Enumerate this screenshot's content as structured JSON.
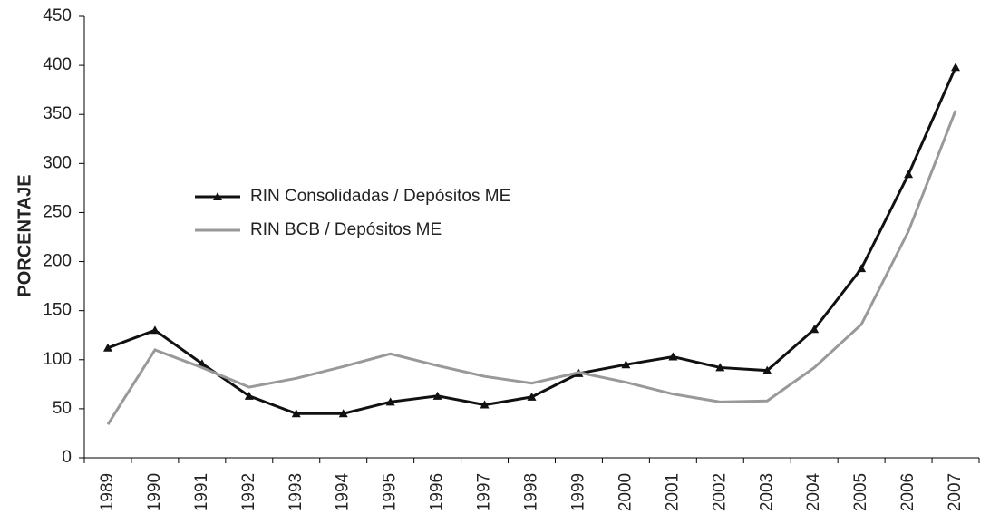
{
  "chart_data": {
    "type": "line",
    "y_label": "PORCENTAJE",
    "categories": [
      "1989",
      "1990",
      "1991",
      "1992",
      "1993",
      "1994",
      "1995",
      "1996",
      "1997",
      "1998",
      "1999",
      "2000",
      "2001",
      "2002",
      "2003",
      "2004",
      "2005",
      "2006",
      "2007"
    ],
    "series": [
      {
        "name": "RIN Consolidadas / Depósitos ME",
        "color": "#111111",
        "marker": "triangle",
        "values": [
          112,
          130,
          96,
          63,
          45,
          45,
          57,
          63,
          54,
          62,
          86,
          95,
          103,
          92,
          89,
          131,
          193,
          289,
          398
        ]
      },
      {
        "name": "RIN BCB / Depósitos ME",
        "color": "#999999",
        "values": [
          34,
          110,
          92,
          72,
          81,
          93,
          106,
          94,
          83,
          76,
          87,
          77,
          65,
          57,
          58,
          92,
          136,
          231,
          354
        ]
      }
    ],
    "ylim": [
      0,
      450
    ],
    "yticks": [
      0,
      50,
      100,
      150,
      200,
      250,
      300,
      350,
      400,
      450
    ],
    "grid": false
  }
}
